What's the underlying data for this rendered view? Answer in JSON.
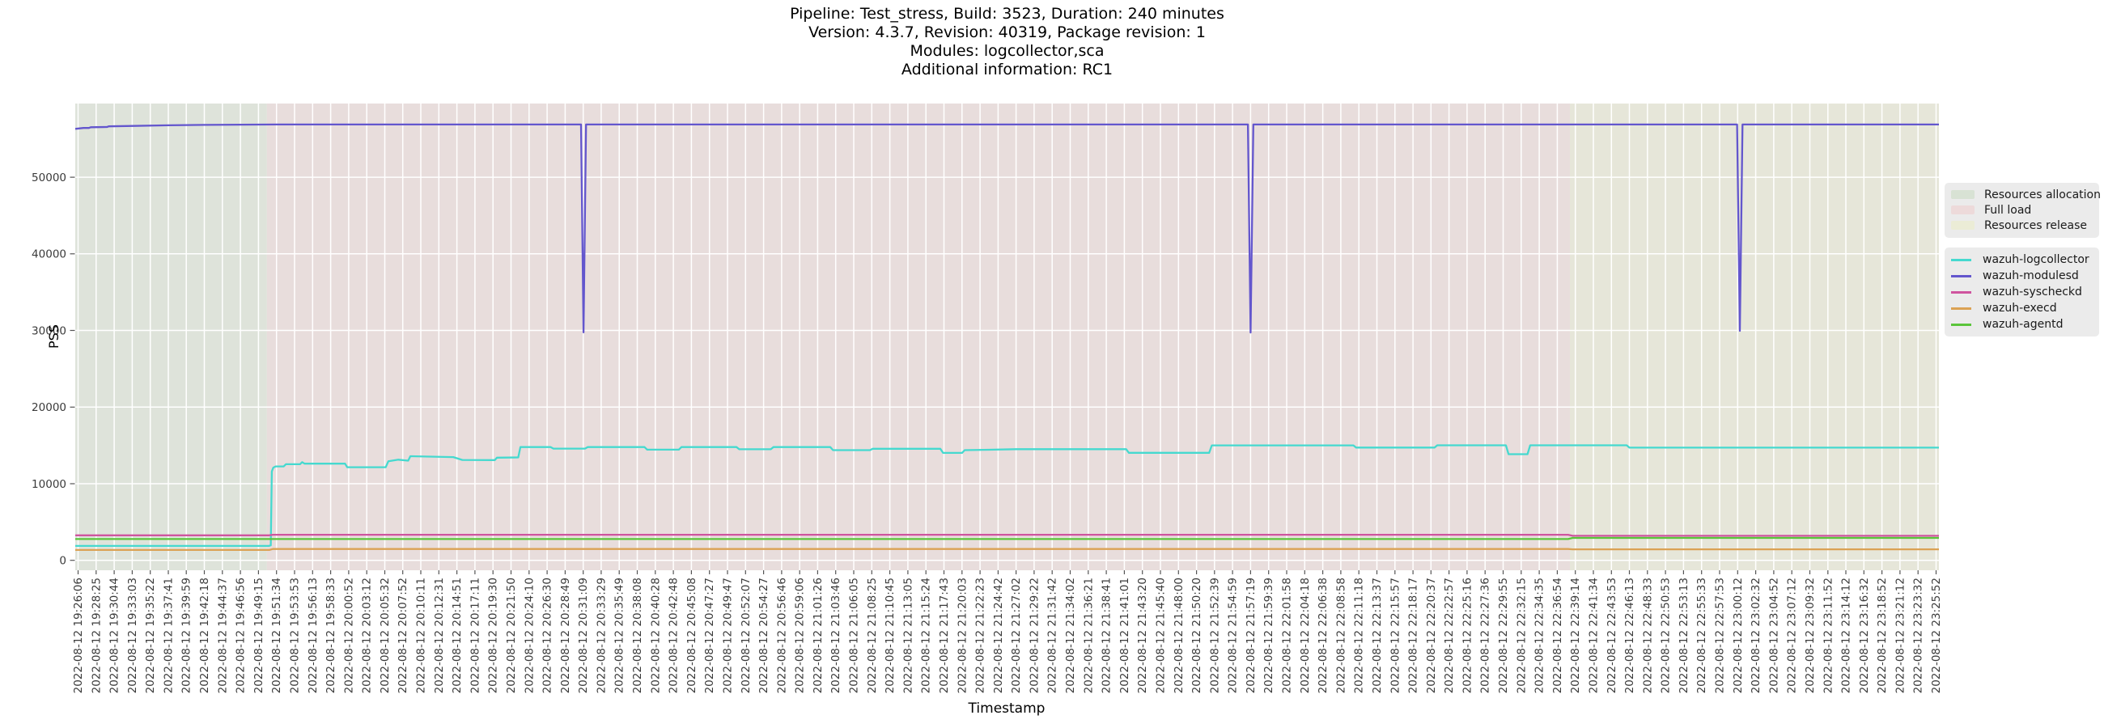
{
  "chart_data": {
    "type": "line",
    "title_lines": [
      "Pipeline: Test_stress, Build: 3523, Duration: 240 minutes",
      "Version: 4.3.7, Revision: 40319, Package revision: 1",
      "Modules: logcollector,sca",
      "Additional information: RC1"
    ],
    "xlabel": "Timestamp",
    "ylabel": "PSS",
    "y_ticks": [
      0,
      10000,
      20000,
      30000,
      40000,
      50000
    ],
    "ylim": [
      -1300,
      59620
    ],
    "grid": "white-on-shaded-background",
    "legend_position": "right",
    "x_tick_labels": [
      "2022-08-12 19:26:06",
      "2022-08-12 19:28:25",
      "2022-08-12 19:30:44",
      "2022-08-12 19:33:03",
      "2022-08-12 19:35:22",
      "2022-08-12 19:37:41",
      "2022-08-12 19:39:59",
      "2022-08-12 19:42:18",
      "2022-08-12 19:44:37",
      "2022-08-12 19:46:56",
      "2022-08-12 19:49:15",
      "2022-08-12 19:51:34",
      "2022-08-12 19:53:53",
      "2022-08-12 19:56:13",
      "2022-08-12 19:58:33",
      "2022-08-12 20:00:52",
      "2022-08-12 20:03:12",
      "2022-08-12 20:05:32",
      "2022-08-12 20:07:52",
      "2022-08-12 20:10:11",
      "2022-08-12 20:12:31",
      "2022-08-12 20:14:51",
      "2022-08-12 20:17:11",
      "2022-08-12 20:19:30",
      "2022-08-12 20:21:50",
      "2022-08-12 20:24:10",
      "2022-08-12 20:26:30",
      "2022-08-12 20:28:49",
      "2022-08-12 20:31:09",
      "2022-08-12 20:33:29",
      "2022-08-12 20:35:49",
      "2022-08-12 20:38:08",
      "2022-08-12 20:40:28",
      "2022-08-12 20:42:48",
      "2022-08-12 20:45:08",
      "2022-08-12 20:47:27",
      "2022-08-12 20:49:47",
      "2022-08-12 20:52:07",
      "2022-08-12 20:54:27",
      "2022-08-12 20:56:46",
      "2022-08-12 20:59:06",
      "2022-08-12 21:01:26",
      "2022-08-12 21:03:46",
      "2022-08-12 21:06:05",
      "2022-08-12 21:08:25",
      "2022-08-12 21:10:45",
      "2022-08-12 21:13:05",
      "2022-08-12 21:15:24",
      "2022-08-12 21:17:43",
      "2022-08-12 21:20:03",
      "2022-08-12 21:22:23",
      "2022-08-12 21:24:42",
      "2022-08-12 21:27:02",
      "2022-08-12 21:29:22",
      "2022-08-12 21:31:42",
      "2022-08-12 21:34:02",
      "2022-08-12 21:36:21",
      "2022-08-12 21:38:41",
      "2022-08-12 21:41:01",
      "2022-08-12 21:43:20",
      "2022-08-12 21:45:40",
      "2022-08-12 21:48:00",
      "2022-08-12 21:50:20",
      "2022-08-12 21:52:39",
      "2022-08-12 21:54:59",
      "2022-08-12 21:57:19",
      "2022-08-12 21:59:39",
      "2022-08-12 22:01:58",
      "2022-08-12 22:04:18",
      "2022-08-12 22:06:38",
      "2022-08-12 22:08:58",
      "2022-08-12 22:11:18",
      "2022-08-12 22:13:37",
      "2022-08-12 22:15:57",
      "2022-08-12 22:18:17",
      "2022-08-12 22:20:37",
      "2022-08-12 22:22:57",
      "2022-08-12 22:25:16",
      "2022-08-12 22:27:36",
      "2022-08-12 22:29:55",
      "2022-08-12 22:32:15",
      "2022-08-12 22:34:35",
      "2022-08-12 22:36:54",
      "2022-08-12 22:39:14",
      "2022-08-12 22:41:34",
      "2022-08-12 22:43:53",
      "2022-08-12 22:46:13",
      "2022-08-12 22:48:33",
      "2022-08-12 22:50:53",
      "2022-08-12 22:53:13",
      "2022-08-12 22:55:33",
      "2022-08-12 22:57:53",
      "2022-08-12 23:00:12",
      "2022-08-12 23:02:32",
      "2022-08-12 23:04:52",
      "2022-08-12 23:07:12",
      "2022-08-12 23:09:32",
      "2022-08-12 23:11:52",
      "2022-08-12 23:14:12",
      "2022-08-12 23:16:32",
      "2022-08-12 23:18:52",
      "2022-08-12 23:21:12",
      "2022-08-12 23:23:32",
      "2022-08-12 23:25:52"
    ],
    "regions": [
      {
        "label": "Resources allocation",
        "color": "#dee3da",
        "legend_color": "#d8e2d4",
        "from_idx": -0.157,
        "to_idx": 10.47
      },
      {
        "label": "Full load",
        "color": "#e8dddc",
        "legend_color": "#eddada",
        "from_idx": 10.47,
        "to_idx": 82.7
      },
      {
        "label": "Resources release",
        "color": "#e6e6d9",
        "legend_color": "#ebecd6",
        "from_idx": 82.7,
        "to_idx": 103.157
      }
    ],
    "series": [
      {
        "name": "wazuh-logcollector",
        "color": "#45d9cf",
        "points": [
          [
            -0.157,
            1880
          ],
          [
            10.58,
            1880
          ],
          [
            10.68,
            1950
          ],
          [
            10.74,
            11600
          ],
          [
            10.82,
            12100
          ],
          [
            10.95,
            12260
          ],
          [
            11.4,
            12260
          ],
          [
            11.52,
            12540
          ],
          [
            12.3,
            12540
          ],
          [
            12.42,
            12820
          ],
          [
            12.55,
            12620
          ],
          [
            14.8,
            12620
          ],
          [
            14.92,
            12150
          ],
          [
            17.05,
            12150
          ],
          [
            17.2,
            12920
          ],
          [
            17.75,
            13130
          ],
          [
            18.3,
            13010
          ],
          [
            18.42,
            13590
          ],
          [
            20.8,
            13470
          ],
          [
            21.3,
            13100
          ],
          [
            23.1,
            13080
          ],
          [
            23.22,
            13400
          ],
          [
            24.4,
            13430
          ],
          [
            24.52,
            14780
          ],
          [
            26.2,
            14780
          ],
          [
            26.35,
            14580
          ],
          [
            28.1,
            14580
          ],
          [
            28.25,
            14780
          ],
          [
            31.4,
            14780
          ],
          [
            31.55,
            14440
          ],
          [
            33.3,
            14440
          ],
          [
            33.45,
            14780
          ],
          [
            36.5,
            14780
          ],
          [
            36.65,
            14500
          ],
          [
            38.4,
            14500
          ],
          [
            38.55,
            14780
          ],
          [
            41.7,
            14780
          ],
          [
            41.85,
            14380
          ],
          [
            43.9,
            14380
          ],
          [
            44.05,
            14560
          ],
          [
            47.8,
            14560
          ],
          [
            47.95,
            14020
          ],
          [
            49.0,
            14020
          ],
          [
            49.15,
            14380
          ],
          [
            50.5,
            14430
          ],
          [
            52.0,
            14510
          ],
          [
            58.1,
            14510
          ],
          [
            58.25,
            14030
          ],
          [
            62.7,
            14030
          ],
          [
            62.85,
            15000
          ],
          [
            70.7,
            15000
          ],
          [
            70.85,
            14720
          ],
          [
            75.2,
            14720
          ],
          [
            75.35,
            15010
          ],
          [
            79.15,
            15010
          ],
          [
            79.3,
            13850
          ],
          [
            80.35,
            13850
          ],
          [
            80.5,
            15010
          ],
          [
            85.85,
            15010
          ],
          [
            86.0,
            14710
          ],
          [
            103.157,
            14710
          ]
        ]
      },
      {
        "name": "wazuh-modulesd",
        "color": "#6356cd",
        "points": [
          [
            -0.157,
            56320
          ],
          [
            0.3,
            56430
          ],
          [
            0.6,
            56430
          ],
          [
            0.7,
            56530
          ],
          [
            1.6,
            56560
          ],
          [
            1.7,
            56640
          ],
          [
            3,
            56700
          ],
          [
            5,
            56780
          ],
          [
            7,
            56830
          ],
          [
            9,
            56860
          ],
          [
            11,
            56890
          ],
          [
            27.88,
            56890
          ],
          [
            28.02,
            29750
          ],
          [
            28.16,
            56890
          ],
          [
            64.85,
            56890
          ],
          [
            65.0,
            29730
          ],
          [
            65.15,
            56890
          ],
          [
            91.97,
            56890
          ],
          [
            92.12,
            29950
          ],
          [
            92.27,
            56890
          ],
          [
            103.157,
            56890
          ]
        ]
      },
      {
        "name": "wazuh-syscheckd",
        "color": "#cf549f",
        "points": [
          [
            -0.157,
            3260
          ],
          [
            10.6,
            3260
          ],
          [
            10.8,
            3330
          ],
          [
            82.6,
            3330
          ],
          [
            82.85,
            3200
          ],
          [
            103.157,
            3200
          ]
        ]
      },
      {
        "name": "wazuh-execd",
        "color": "#dba254",
        "points": [
          [
            -0.157,
            1350
          ],
          [
            10.6,
            1350
          ],
          [
            10.8,
            1480
          ],
          [
            82.6,
            1480
          ],
          [
            82.85,
            1430
          ],
          [
            103.157,
            1430
          ]
        ]
      },
      {
        "name": "wazuh-agentd",
        "color": "#5ac43a",
        "points": [
          [
            -0.157,
            2780
          ],
          [
            82.6,
            2780
          ],
          [
            82.85,
            2920
          ],
          [
            103.157,
            2920
          ]
        ]
      }
    ]
  }
}
